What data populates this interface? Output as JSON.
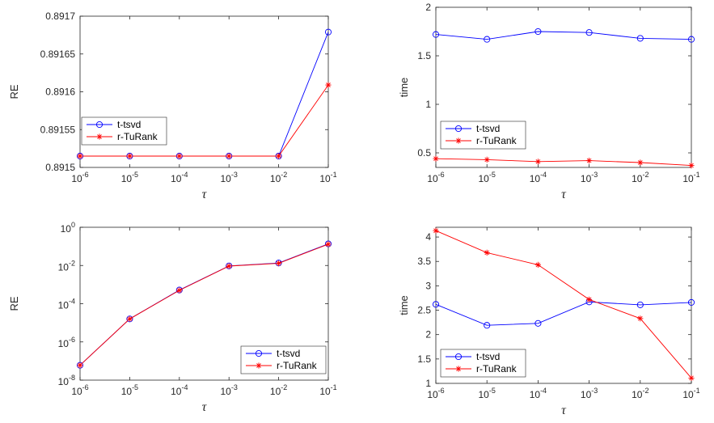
{
  "colors": {
    "tsvd": "#0000ff",
    "turank": "#ff0000",
    "axis": "#262626",
    "grid": "#d9d9d9"
  },
  "chart_data": [
    {
      "type": "line",
      "id": "top-left",
      "xscale": "log",
      "yscale": "linear",
      "x": [
        1e-06,
        1e-05,
        0.0001,
        0.001,
        0.01,
        0.1
      ],
      "xticks": [
        "10",
        "10",
        "10",
        "10",
        "10",
        "10"
      ],
      "xtick_exponents": [
        "-6",
        "-5",
        "-4",
        "-3",
        "-2",
        "-1"
      ],
      "xlabel": "τ",
      "ylabel": "RE",
      "ylim": [
        0.8915,
        0.8917
      ],
      "yticks": [
        0.8915,
        0.89155,
        0.8916,
        0.89165,
        0.8917
      ],
      "ytick_labels": [
        "0.8915",
        "0.89155",
        "0.8916",
        "0.89165",
        "0.8917"
      ],
      "legend_position": "lower-left",
      "series": [
        {
          "name": "t-tsvd",
          "marker": "circle",
          "values": [
            0.891515,
            0.891515,
            0.891515,
            0.891515,
            0.891515,
            0.891679
          ]
        },
        {
          "name": "r-TuRank",
          "marker": "star",
          "values": [
            0.891515,
            0.891515,
            0.891515,
            0.891515,
            0.891515,
            0.891609
          ]
        }
      ]
    },
    {
      "type": "line",
      "id": "top-right",
      "xscale": "log",
      "yscale": "linear",
      "x": [
        1e-06,
        1e-05,
        0.0001,
        0.001,
        0.01,
        0.1
      ],
      "xticks": [
        "10",
        "10",
        "10",
        "10",
        "10",
        "10"
      ],
      "xtick_exponents": [
        "-6",
        "-5",
        "-4",
        "-3",
        "-2",
        "-1"
      ],
      "xlabel": "τ",
      "ylabel": "time",
      "ylim": [
        0.35,
        2.0
      ],
      "yticks": [
        0.5,
        1,
        1.5,
        2
      ],
      "ytick_labels": [
        "0.5",
        "1",
        "1.5",
        "2"
      ],
      "legend_position": "lower-left",
      "series": [
        {
          "name": "t-tsvd",
          "marker": "circle",
          "values": [
            1.72,
            1.67,
            1.75,
            1.74,
            1.68,
            1.67
          ]
        },
        {
          "name": "r-TuRank",
          "marker": "star",
          "values": [
            0.44,
            0.43,
            0.41,
            0.42,
            0.4,
            0.37
          ]
        }
      ]
    },
    {
      "type": "line",
      "id": "bottom-left",
      "xscale": "log",
      "yscale": "log",
      "x": [
        1e-06,
        1e-05,
        0.0001,
        0.001,
        0.01,
        0.1
      ],
      "xticks": [
        "10",
        "10",
        "10",
        "10",
        "10",
        "10"
      ],
      "xtick_exponents": [
        "-6",
        "-5",
        "-4",
        "-3",
        "-2",
        "-1"
      ],
      "xlabel": "τ",
      "ylabel": "RE",
      "ylim": [
        1e-08,
        1
      ],
      "yticks": [
        1e-08,
        1e-06,
        0.0001,
        0.01,
        1
      ],
      "ytick_labels": [
        "10",
        "10",
        "10",
        "10",
        "10"
      ],
      "ytick_exponents": [
        "-8",
        "-6",
        "-4",
        "-2",
        "0"
      ],
      "legend_position": "lower-right",
      "series": [
        {
          "name": "t-tsvd",
          "marker": "circle",
          "values": [
            6e-08,
            1.6e-05,
            0.00052,
            0.0095,
            0.0135,
            0.135
          ]
        },
        {
          "name": "r-TuRank",
          "marker": "star",
          "values": [
            6e-08,
            1.6e-05,
            0.0005,
            0.0093,
            0.013,
            0.13
          ]
        }
      ]
    },
    {
      "type": "line",
      "id": "bottom-right",
      "xscale": "log",
      "yscale": "linear",
      "x": [
        1e-06,
        1e-05,
        0.0001,
        0.001,
        0.01,
        0.1
      ],
      "xticks": [
        "10",
        "10",
        "10",
        "10",
        "10",
        "10"
      ],
      "xtick_exponents": [
        "-6",
        "-5",
        "-4",
        "-3",
        "-2",
        "-1"
      ],
      "xlabel": "τ",
      "ylabel": "time",
      "ylim": [
        1,
        4.2
      ],
      "yticks": [
        1,
        1.5,
        2,
        2.5,
        3,
        3.5,
        4
      ],
      "ytick_labels": [
        "1",
        "1.5",
        "2",
        "2.5",
        "3",
        "3.5",
        "4"
      ],
      "legend_position": "lower-left",
      "series": [
        {
          "name": "t-tsvd",
          "marker": "circle",
          "values": [
            2.62,
            2.19,
            2.23,
            2.67,
            2.61,
            2.66
          ]
        },
        {
          "name": "r-TuRank",
          "marker": "star",
          "values": [
            4.13,
            3.68,
            3.43,
            2.72,
            2.33,
            1.11
          ]
        }
      ]
    }
  ]
}
